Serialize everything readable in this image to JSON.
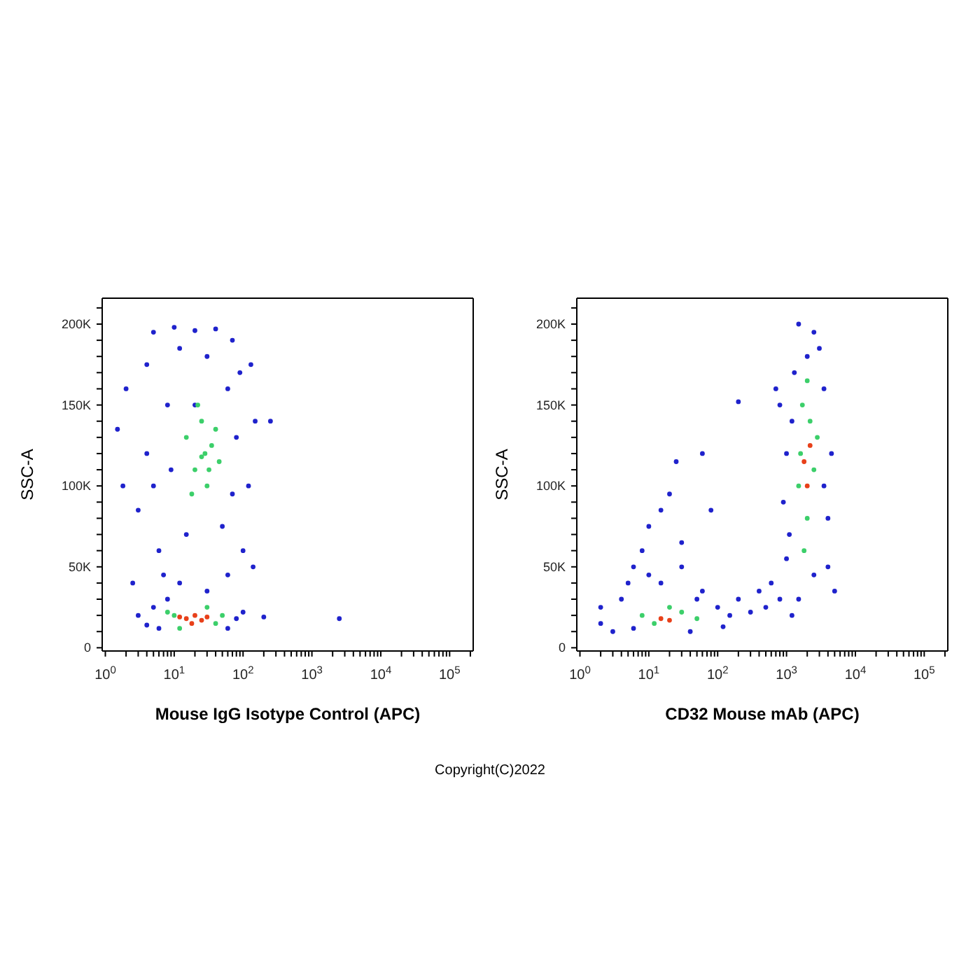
{
  "chart_data": [
    {
      "type": "scatter",
      "xlabel": "Mouse IgG Isotype Control (APC)",
      "ylabel": "SSC-A",
      "log": "x",
      "marker": "circle",
      "xlim": [
        0.9,
        220000
      ],
      "ylim": [
        -2000,
        216000
      ],
      "xticks": [
        {
          "value": 1,
          "label": "10$^{0}$"
        },
        {
          "value": 2,
          "label": null
        },
        {
          "value": 3,
          "label": null
        },
        {
          "value": 4,
          "label": null
        },
        {
          "value": 5,
          "label": null
        },
        {
          "value": 6,
          "label": null
        },
        {
          "value": 7,
          "label": null
        },
        {
          "value": 8,
          "label": null
        },
        {
          "value": 9,
          "label": null
        },
        {
          "value": 10,
          "label": "10$^{1}$"
        },
        {
          "value": 20,
          "label": null
        },
        {
          "value": 30,
          "label": null
        },
        {
          "value": 40,
          "label": null
        },
        {
          "value": 50,
          "label": null
        },
        {
          "value": 60,
          "label": null
        },
        {
          "value": 70,
          "label": null
        },
        {
          "value": 80,
          "label": null
        },
        {
          "value": 90,
          "label": null
        },
        {
          "value": 100,
          "label": "10$^{2}$"
        },
        {
          "value": 200,
          "label": null
        },
        {
          "value": 300,
          "label": null
        },
        {
          "value": 400,
          "label": null
        },
        {
          "value": 500,
          "label": null
        },
        {
          "value": 600,
          "label": null
        },
        {
          "value": 700,
          "label": null
        },
        {
          "value": 800,
          "label": null
        },
        {
          "value": 900,
          "label": null
        },
        {
          "value": 1000,
          "label": "10$^{3}$"
        },
        {
          "value": 2000,
          "label": null
        },
        {
          "value": 3000,
          "label": null
        },
        {
          "value": 4000,
          "label": null
        },
        {
          "value": 5000,
          "label": null
        },
        {
          "value": 6000,
          "label": null
        },
        {
          "value": 7000,
          "label": null
        },
        {
          "value": 8000,
          "label": null
        },
        {
          "value": 9000,
          "label": null
        },
        {
          "value": 10000,
          "label": "10$^{4}$"
        },
        {
          "value": 20000,
          "label": null
        },
        {
          "value": 30000,
          "label": null
        },
        {
          "value": 40000,
          "label": null
        },
        {
          "value": 50000,
          "label": null
        },
        {
          "value": 60000,
          "label": null
        },
        {
          "value": 70000,
          "label": null
        },
        {
          "value": 80000,
          "label": null
        },
        {
          "value": 90000,
          "label": null
        },
        {
          "value": 100000,
          "label": "10$^{5}$"
        },
        {
          "value": 200000,
          "label": null
        }
      ],
      "yticks": [
        {
          "value": 0,
          "label": "0"
        },
        {
          "value": 10000,
          "label": null
        },
        {
          "value": 20000,
          "label": null
        },
        {
          "value": 30000,
          "label": null
        },
        {
          "value": 40000,
          "label": null
        },
        {
          "value": 50000,
          "label": "50K"
        },
        {
          "value": 60000,
          "label": null
        },
        {
          "value": 70000,
          "label": null
        },
        {
          "value": 80000,
          "label": null
        },
        {
          "value": 90000,
          "label": null
        },
        {
          "value": 100000,
          "label": "100K"
        },
        {
          "value": 110000,
          "label": null
        },
        {
          "value": 120000,
          "label": null
        },
        {
          "value": 130000,
          "label": null
        },
        {
          "value": 140000,
          "label": null
        },
        {
          "value": 150000,
          "label": "150K"
        },
        {
          "value": 160000,
          "label": null
        },
        {
          "value": 170000,
          "label": null
        },
        {
          "value": 180000,
          "label": null
        },
        {
          "value": 190000,
          "label": null
        },
        {
          "value": 200000,
          "label": "200K"
        },
        {
          "value": 210000,
          "label": null
        }
      ],
      "annotations": [
        "Copyright(C)2022"
      ],
      "series": [
        {
          "color": "#1f22cc",
          "x": [
            3,
            4,
            5,
            6,
            8,
            60,
            80,
            100,
            200,
            2500,
            1.5,
            2,
            4,
            5,
            10,
            20,
            40,
            70,
            90,
            130,
            150,
            250,
            120,
            100,
            6,
            5,
            4,
            3,
            8,
            7,
            12,
            30,
            60,
            15,
            50,
            80,
            60,
            12,
            30,
            20,
            9,
            70,
            2.5,
            140,
            1.8
          ],
          "values": [
            20000,
            14000,
            25000,
            12000,
            30000,
            12000,
            18000,
            22000,
            19000,
            18000,
            135000,
            160000,
            175000,
            195000,
            198000,
            196000,
            197000,
            190000,
            170000,
            175000,
            140000,
            140000,
            100000,
            60000,
            60000,
            100000,
            120000,
            85000,
            150000,
            45000,
            40000,
            35000,
            45000,
            70000,
            75000,
            130000,
            160000,
            185000,
            180000,
            150000,
            110000,
            95000,
            40000,
            50000,
            100000
          ]
        },
        {
          "color": "#3ccf6a",
          "x": [
            15,
            25,
            35,
            20,
            30,
            40,
            18,
            28,
            45,
            22,
            10,
            30,
            40,
            8,
            50,
            12,
            25,
            32
          ],
          "values": [
            130000,
            140000,
            125000,
            110000,
            100000,
            135000,
            95000,
            120000,
            115000,
            150000,
            20000,
            25000,
            15000,
            22000,
            20000,
            12000,
            118000,
            110000
          ]
        },
        {
          "color": "#e8401a",
          "x": [
            15,
            20,
            25,
            12,
            18,
            30
          ],
          "values": [
            18000,
            20000,
            17000,
            19000,
            15000,
            19000
          ]
        }
      ]
    },
    {
      "type": "scatter",
      "xlabel": "CD32 Mouse mAb (APC)",
      "ylabel": "SSC-A",
      "log": "x",
      "marker": "circle",
      "xlim": [
        0.9,
        220000
      ],
      "ylim": [
        -2000,
        216000
      ],
      "xticks": [
        {
          "value": 1,
          "label": "10$^{0}$"
        },
        {
          "value": 2,
          "label": null
        },
        {
          "value": 3,
          "label": null
        },
        {
          "value": 4,
          "label": null
        },
        {
          "value": 5,
          "label": null
        },
        {
          "value": 6,
          "label": null
        },
        {
          "value": 7,
          "label": null
        },
        {
          "value": 8,
          "label": null
        },
        {
          "value": 9,
          "label": null
        },
        {
          "value": 10,
          "label": "10$^{1}$"
        },
        {
          "value": 20,
          "label": null
        },
        {
          "value": 30,
          "label": null
        },
        {
          "value": 40,
          "label": null
        },
        {
          "value": 50,
          "label": null
        },
        {
          "value": 60,
          "label": null
        },
        {
          "value": 70,
          "label": null
        },
        {
          "value": 80,
          "label": null
        },
        {
          "value": 90,
          "label": null
        },
        {
          "value": 100,
          "label": "10$^{2}$"
        },
        {
          "value": 200,
          "label": null
        },
        {
          "value": 300,
          "label": null
        },
        {
          "value": 400,
          "label": null
        },
        {
          "value": 500,
          "label": null
        },
        {
          "value": 600,
          "label": null
        },
        {
          "value": 700,
          "label": null
        },
        {
          "value": 800,
          "label": null
        },
        {
          "value": 900,
          "label": null
        },
        {
          "value": 1000,
          "label": "10$^{3}$"
        },
        {
          "value": 2000,
          "label": null
        },
        {
          "value": 3000,
          "label": null
        },
        {
          "value": 4000,
          "label": null
        },
        {
          "value": 5000,
          "label": null
        },
        {
          "value": 6000,
          "label": null
        },
        {
          "value": 7000,
          "label": null
        },
        {
          "value": 8000,
          "label": null
        },
        {
          "value": 9000,
          "label": null
        },
        {
          "value": 10000,
          "label": "10$^{4}$"
        },
        {
          "value": 20000,
          "label": null
        },
        {
          "value": 30000,
          "label": null
        },
        {
          "value": 40000,
          "label": null
        },
        {
          "value": 50000,
          "label": null
        },
        {
          "value": 60000,
          "label": null
        },
        {
          "value": 70000,
          "label": null
        },
        {
          "value": 80000,
          "label": null
        },
        {
          "value": 90000,
          "label": null
        },
        {
          "value": 100000,
          "label": "10$^{5}$"
        },
        {
          "value": 200000,
          "label": null
        }
      ],
      "yticks": [
        {
          "value": 0,
          "label": "0"
        },
        {
          "value": 10000,
          "label": null
        },
        {
          "value": 20000,
          "label": null
        },
        {
          "value": 30000,
          "label": null
        },
        {
          "value": 40000,
          "label": null
        },
        {
          "value": 50000,
          "label": "50K"
        },
        {
          "value": 60000,
          "label": null
        },
        {
          "value": 70000,
          "label": null
        },
        {
          "value": 80000,
          "label": null
        },
        {
          "value": 90000,
          "label": null
        },
        {
          "value": 100000,
          "label": "100K"
        },
        {
          "value": 110000,
          "label": null
        },
        {
          "value": 120000,
          "label": null
        },
        {
          "value": 130000,
          "label": null
        },
        {
          "value": 140000,
          "label": null
        },
        {
          "value": 150000,
          "label": "150K"
        },
        {
          "value": 160000,
          "label": null
        },
        {
          "value": 170000,
          "label": null
        },
        {
          "value": 180000,
          "label": null
        },
        {
          "value": 190000,
          "label": null
        },
        {
          "value": 200000,
          "label": "200K"
        },
        {
          "value": 210000,
          "label": null
        }
      ],
      "series": [
        {
          "color": "#1f22cc",
          "x": [
            2,
            2,
            3,
            4,
            5,
            6,
            8,
            10,
            15,
            30,
            60,
            100,
            150,
            200,
            300,
            400,
            500,
            600,
            800,
            1000,
            1200,
            5000,
            4000,
            3500,
            4500,
            800,
            700,
            1500,
            2500,
            3000,
            1300,
            900,
            1000,
            200,
            25,
            60,
            20,
            15,
            10,
            80,
            30,
            50,
            6,
            40,
            120,
            1500,
            2500,
            3500,
            1200,
            2000,
            4000,
            1100
          ],
          "values": [
            15000,
            25000,
            10000,
            30000,
            40000,
            50000,
            60000,
            45000,
            40000,
            50000,
            35000,
            25000,
            20000,
            30000,
            22000,
            35000,
            25000,
            40000,
            30000,
            55000,
            20000,
            35000,
            50000,
            100000,
            120000,
            150000,
            160000,
            200000,
            195000,
            185000,
            170000,
            90000,
            120000,
            152000,
            115000,
            120000,
            95000,
            85000,
            75000,
            85000,
            65000,
            30000,
            12000,
            10000,
            13000,
            30000,
            45000,
            160000,
            140000,
            180000,
            80000,
            70000
          ]
        },
        {
          "color": "#3ccf6a",
          "x": [
            8,
            12,
            30,
            50,
            20,
            1800,
            2000,
            1500,
            2500,
            1700,
            2200,
            1600,
            2800,
            2000
          ],
          "values": [
            20000,
            15000,
            22000,
            18000,
            25000,
            60000,
            80000,
            100000,
            110000,
            150000,
            140000,
            120000,
            130000,
            165000
          ]
        },
        {
          "color": "#e8401a",
          "x": [
            15,
            20,
            2000,
            1800,
            2200
          ],
          "values": [
            18000,
            17000,
            100000,
            115000,
            125000
          ]
        }
      ]
    }
  ]
}
